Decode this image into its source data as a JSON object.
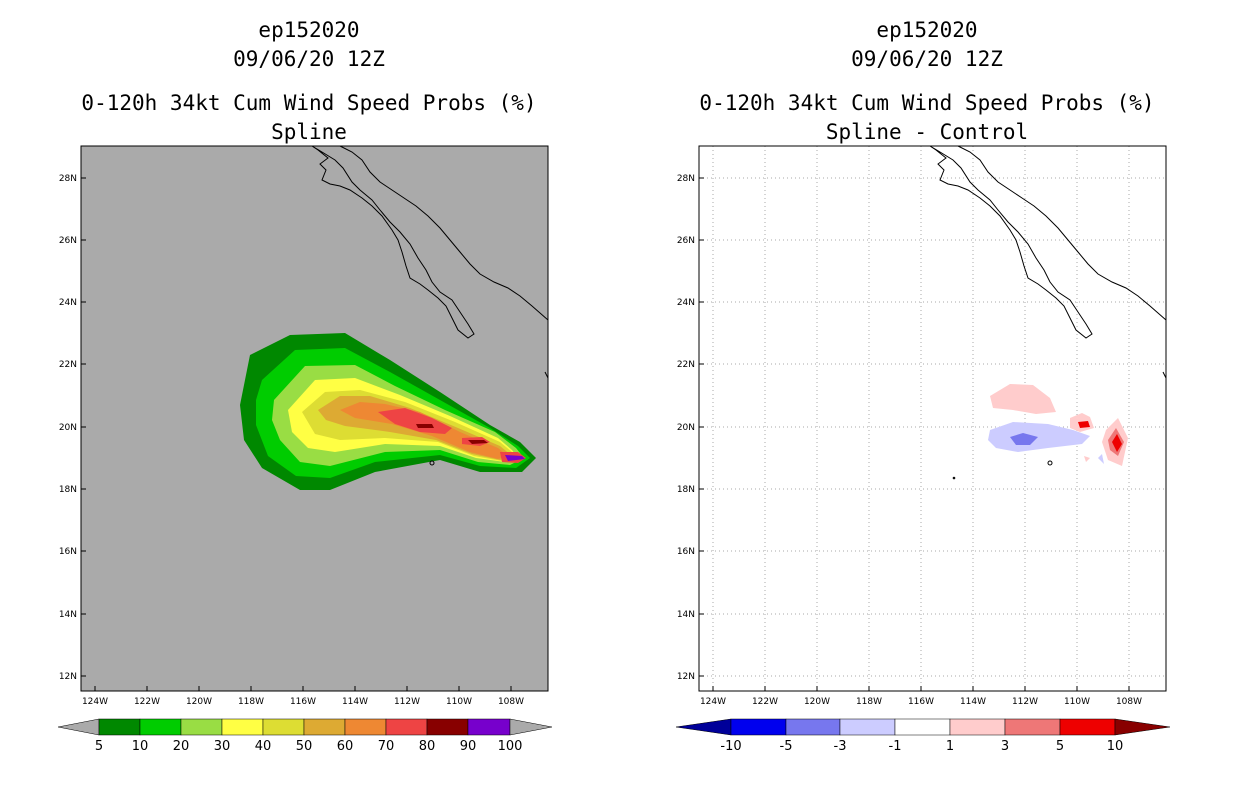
{
  "panels": [
    {
      "storm_id": "ep152020",
      "datetime": "09/06/20 12Z",
      "product": "0-120h 34kt Cum Wind Speed Probs (%)",
      "subtitle": "Spline",
      "lat_labels": [
        "28N",
        "26N",
        "24N",
        "22N",
        "20N",
        "18N",
        "16N",
        "14N",
        "12N"
      ],
      "lon_labels": [
        "124W",
        "122W",
        "120W",
        "118W",
        "116W",
        "114W",
        "112W",
        "110W",
        "108W"
      ],
      "colorbar": {
        "labels": [
          "5",
          "10",
          "20",
          "30",
          "40",
          "50",
          "60",
          "70",
          "80",
          "90",
          "100"
        ],
        "colors": [
          "#008800",
          "#00cc00",
          "#99dd44",
          "#ffff44",
          "#dddd33",
          "#ddaa33",
          "#ee8833",
          "#ee4444",
          "#880000",
          "#7700cc"
        ]
      },
      "background": "#aaaaaa"
    },
    {
      "storm_id": "ep152020",
      "datetime": "09/06/20 12Z",
      "product": "0-120h 34kt Cum Wind Speed Probs (%)",
      "subtitle": "Spline - Control",
      "lat_labels": [
        "28N",
        "26N",
        "24N",
        "22N",
        "20N",
        "18N",
        "16N",
        "14N",
        "12N"
      ],
      "lon_labels": [
        "124W",
        "122W",
        "120W",
        "118W",
        "116W",
        "114W",
        "112W",
        "110W",
        "108W"
      ],
      "colorbar": {
        "labels": [
          "-10",
          "-5",
          "-3",
          "-1",
          "1",
          "3",
          "5",
          "10"
        ],
        "colors": [
          "#000099",
          "#0000ee",
          "#7777ee",
          "#ccccff",
          "#ffffff",
          "#ffcccc",
          "#ee7777",
          "#ee0000",
          "#880000"
        ]
      },
      "background": "#ffffff"
    }
  ]
}
